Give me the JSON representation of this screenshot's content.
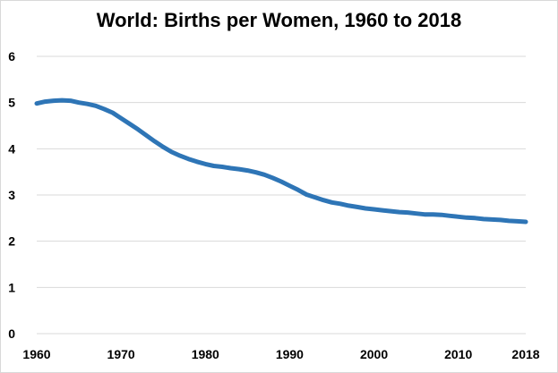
{
  "chart_data": {
    "type": "line",
    "title": "World: Births per Women, 1960 to 2018",
    "xlabel": "",
    "ylabel": "",
    "xlim": [
      1960,
      2018
    ],
    "ylim": [
      0,
      6
    ],
    "x_ticks": [
      "1960",
      "1970",
      "1980",
      "1990",
      "2000",
      "2010",
      "2018"
    ],
    "y_ticks": [
      "0",
      "1",
      "2",
      "3",
      "4",
      "5",
      "6"
    ],
    "grid": true,
    "legend": "none",
    "series": [
      {
        "color": "#2e75b6",
        "x": [
          1960,
          1961,
          1962,
          1963,
          1964,
          1965,
          1966,
          1967,
          1968,
          1969,
          1970,
          1971,
          1972,
          1973,
          1974,
          1975,
          1976,
          1977,
          1978,
          1979,
          1980,
          1981,
          1982,
          1983,
          1984,
          1985,
          1986,
          1987,
          1988,
          1989,
          1990,
          1991,
          1992,
          1993,
          1994,
          1995,
          1996,
          1997,
          1998,
          1999,
          2000,
          2001,
          2002,
          2003,
          2004,
          2005,
          2006,
          2007,
          2008,
          2009,
          2010,
          2011,
          2012,
          2013,
          2014,
          2015,
          2016,
          2017,
          2018
        ],
        "y": [
          4.98,
          5.02,
          5.04,
          5.05,
          5.04,
          5.0,
          4.97,
          4.93,
          4.86,
          4.78,
          4.66,
          4.54,
          4.42,
          4.29,
          4.16,
          4.04,
          3.93,
          3.85,
          3.78,
          3.72,
          3.67,
          3.63,
          3.61,
          3.58,
          3.56,
          3.53,
          3.49,
          3.44,
          3.37,
          3.29,
          3.2,
          3.11,
          3.01,
          2.95,
          2.89,
          2.84,
          2.81,
          2.77,
          2.74,
          2.71,
          2.69,
          2.67,
          2.65,
          2.63,
          2.62,
          2.6,
          2.58,
          2.58,
          2.57,
          2.55,
          2.53,
          2.51,
          2.5,
          2.48,
          2.47,
          2.46,
          2.44,
          2.43,
          2.42
        ]
      }
    ]
  }
}
